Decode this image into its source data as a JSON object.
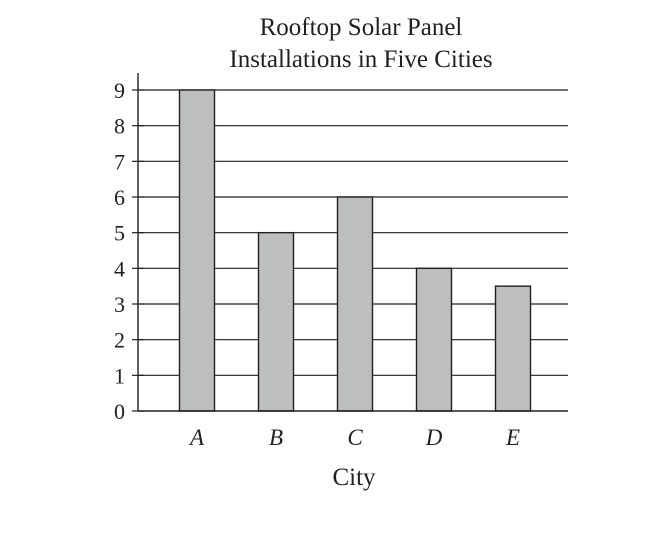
{
  "chart_data": {
    "type": "bar",
    "title_lines": [
      "Rooftop Solar Panel",
      "Installations in Five Cities"
    ],
    "categories": [
      "A",
      "B",
      "C",
      "D",
      "E"
    ],
    "values": [
      9,
      5,
      6,
      4,
      3.5
    ],
    "xlabel": "City",
    "ylabel": "",
    "ylim": [
      0,
      9
    ],
    "yticks": [
      "0",
      "1",
      "2",
      "3",
      "4",
      "5",
      "6",
      "7",
      "8",
      "9"
    ],
    "grid": true,
    "colors": {
      "bar_fill": "#bcbec0",
      "bar_stroke": "#231f20",
      "grid": "#231f20",
      "axis": "#231f20",
      "text": "#231f20"
    }
  }
}
